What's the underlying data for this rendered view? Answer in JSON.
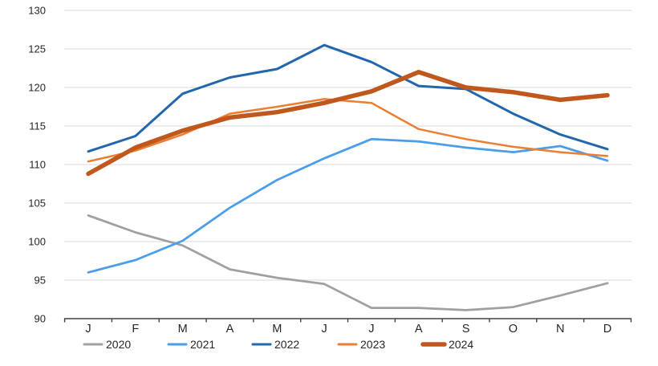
{
  "chart_data": {
    "type": "line",
    "title": "",
    "xlabel": "",
    "ylabel": "",
    "categories": [
      "J",
      "F",
      "M",
      "A",
      "M",
      "J",
      "J",
      "A",
      "S",
      "O",
      "N",
      "D"
    ],
    "series": [
      {
        "name": "2020",
        "color": "#A0A0A0",
        "line_width": 2.75,
        "values": [
          103.4,
          101.2,
          99.5,
          96.4,
          95.3,
          94.5,
          91.4,
          91.4,
          91.1,
          91.5,
          93.0,
          94.6
        ]
      },
      {
        "name": "2021",
        "color": "#4A9DE9",
        "line_width": 2.75,
        "values": [
          96.0,
          97.6,
          100.1,
          104.4,
          108.0,
          110.8,
          113.3,
          113.0,
          112.2,
          111.6,
          112.4,
          110.5
        ]
      },
      {
        "name": "2022",
        "color": "#2266AC",
        "line_width": 3,
        "values": [
          111.7,
          113.7,
          119.2,
          121.3,
          122.4,
          125.5,
          123.3,
          120.2,
          119.8,
          116.6,
          113.9,
          112.0
        ]
      },
      {
        "name": "2023",
        "color": "#ED7D31",
        "line_width": 2.5,
        "values": [
          110.4,
          111.8,
          113.9,
          116.6,
          117.5,
          118.5,
          118.0,
          114.6,
          113.3,
          112.3,
          111.6,
          111.1
        ]
      },
      {
        "name": "2024",
        "color": "#C0571C",
        "line_width": 5.5,
        "values": [
          108.8,
          112.2,
          114.4,
          116.1,
          116.8,
          118.0,
          119.5,
          122.0,
          120.0,
          119.4,
          118.4,
          119.0
        ]
      }
    ],
    "ylim": [
      90,
      130
    ],
    "y_tick_step": 5,
    "y_tick_labels": [
      "90",
      "95",
      "100",
      "105",
      "110",
      "115",
      "120",
      "125",
      "130"
    ],
    "grid": "horizontal-only",
    "gridline_color": "#D9D9D9",
    "axis_line_color": "#404040",
    "legend_position": "bottom",
    "legend_labels": [
      "2020",
      "2021",
      "2022",
      "2023",
      "2024"
    ]
  }
}
